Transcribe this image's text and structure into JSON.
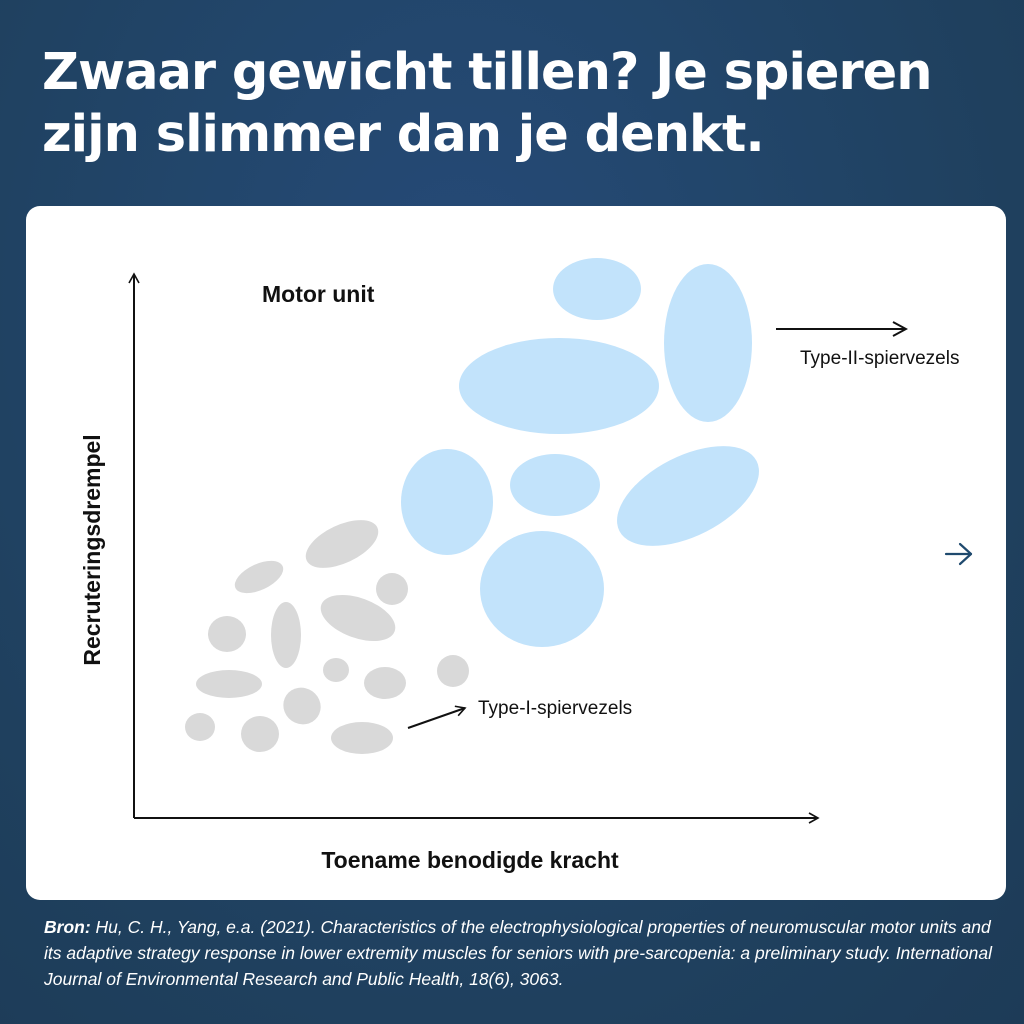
{
  "header": {
    "title_line1": "Zwaar gewicht tillen? Je spieren",
    "title_line2": "zijn slimmer dan je denkt."
  },
  "diagram": {
    "motor_unit_label": "Motor unit",
    "type2_label": "Type-II-spiervezels",
    "type1_label": "Type-I-spiervezels",
    "y_axis_label": "Recruteringsdrempel",
    "x_axis_label": "Toename benodigde kracht",
    "next_icon": "arrow-right-icon",
    "colors": {
      "type1_fill": "#d9d9d9",
      "type2_fill": "#c2e3fb",
      "axis": "#111111",
      "accent": "#1f4a6e"
    }
  },
  "footer": {
    "source_label": "Bron:",
    "source_text": " Hu, C. H., Yang, e.a. (2021). Characteristics of the electrophysiological properties of neuromuscular motor units and its adaptive strategy response in lower extremity muscles for seniors with pre-sarcopenia: a preliminary study. International Journal of Environmental Research and Public Health, 18(6), 3063."
  }
}
